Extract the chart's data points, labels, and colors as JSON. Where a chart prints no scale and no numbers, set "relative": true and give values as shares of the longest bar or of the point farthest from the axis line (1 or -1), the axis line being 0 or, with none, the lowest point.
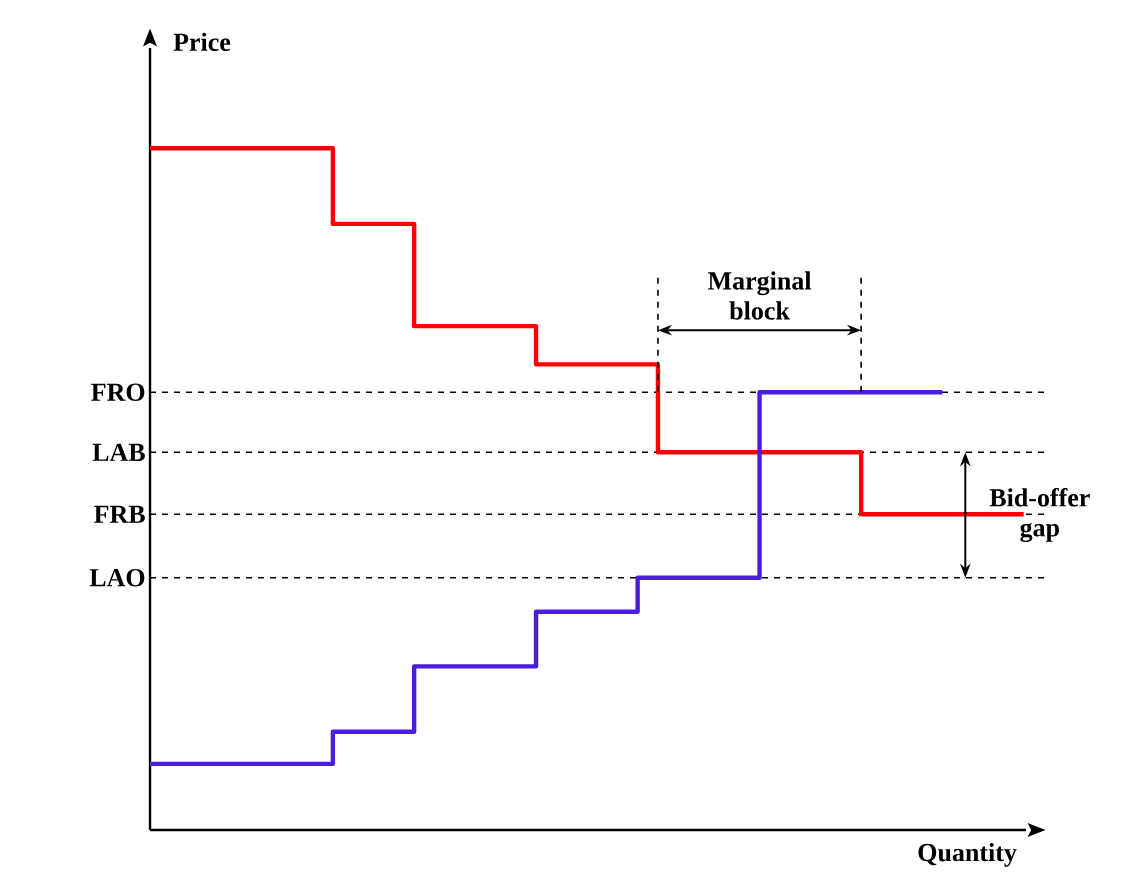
{
  "chart_data": {
    "type": "step",
    "relative": true,
    "xlabel": "Quantity",
    "ylabel": "Price",
    "categories": [
      null,
      null,
      null,
      null,
      null,
      null,
      null,
      null,
      null,
      null,
      null,
      null,
      null,
      null,
      null,
      null,
      null,
      null,
      null,
      null,
      null,
      null,
      null,
      null,
      null,
      null,
      null,
      null,
      null,
      null,
      null,
      null,
      null,
      null,
      null,
      null,
      null,
      null,
      null,
      null,
      null,
      null,
      null,
      null
    ],
    "series": [
      {
        "color": "#ff0000",
        "values": [
          1.0,
          1.0,
          1.0,
          1.0,
          1.0,
          1.0,
          1.0,
          1.0,
          1.0,
          0.889,
          0.889,
          0.889,
          0.889,
          0.739,
          0.739,
          0.739,
          0.739,
          0.739,
          0.739,
          0.683,
          0.683,
          0.683,
          0.683,
          0.683,
          0.683,
          0.554,
          0.554,
          0.554,
          0.554,
          0.554,
          0.554,
          0.554,
          0.554,
          0.554,
          0.554,
          0.463,
          0.463,
          0.463,
          0.463,
          0.463,
          0.463,
          0.463,
          0.463,
          0.463
        ]
      },
      {
        "color": "#4b1fd8",
        "values": [
          0.097,
          0.097,
          0.097,
          0.097,
          0.097,
          0.097,
          0.097,
          0.097,
          0.097,
          0.144,
          0.144,
          0.144,
          0.144,
          0.24,
          0.24,
          0.24,
          0.24,
          0.24,
          0.24,
          0.32,
          0.32,
          0.32,
          0.32,
          0.32,
          0.37,
          0.37,
          0.37,
          0.37,
          0.37,
          0.37,
          0.642,
          0.642,
          0.642,
          0.642,
          0.642,
          0.642,
          0.642,
          0.642,
          0.642,
          0.642,
          null,
          null,
          null,
          null
        ]
      }
    ],
    "ref_lines": [
      {
        "axis": "y",
        "value": 0.642,
        "label": "FRO",
        "line_style": "dashed",
        "color": "#000000"
      },
      {
        "axis": "y",
        "value": 0.554,
        "label": "LAB",
        "line_style": "dashed",
        "color": "#000000"
      },
      {
        "axis": "y",
        "value": 0.463,
        "label": "FRB",
        "line_style": "dashed",
        "color": "#000000"
      },
      {
        "axis": "y",
        "value": 0.37,
        "label": "LAO",
        "line_style": "dashed",
        "color": "#000000"
      }
    ],
    "annotations": [
      "Marginal block",
      "Bid-offer gap"
    ]
  }
}
